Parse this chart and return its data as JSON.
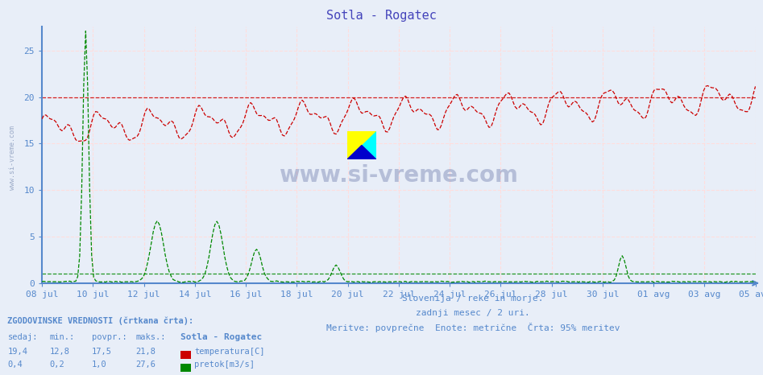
{
  "title": "Sotla - Rogatec",
  "title_color": "#4444bb",
  "bg_color": "#e8eef8",
  "plot_bg_color": "#e8eef8",
  "subtitle1": "Slovenija / reke in morje.",
  "subtitle2": "zadnji mesec / 2 uri.",
  "subtitle3": "Meritve: povprečne  Enote: metrične  Črta: 95% meritev",
  "xlabel_dates": [
    "08 jul",
    "10 jul",
    "12 jul",
    "14 jul",
    "16 jul",
    "18 jul",
    "20 jul",
    "22 jul",
    "24 jul",
    "26 jul",
    "28 jul",
    "30 jul",
    "01 avg",
    "03 avg",
    "05 avg"
  ],
  "ylabel_vals": [
    0,
    5,
    10,
    15,
    20,
    25
  ],
  "temp_color": "#cc0000",
  "flow_color": "#008800",
  "dashed_temp_ref": 20.0,
  "dashed_flow_ref": 1.0,
  "temp_min": 12.8,
  "temp_max": 21.8,
  "temp_avg": 17.5,
  "temp_now": 19.4,
  "flow_min": 0.2,
  "flow_max": 27.6,
  "flow_avg": 1.0,
  "flow_now": 0.4,
  "axis_color": "#5588cc",
  "grid_color": "#ddaaaa",
  "grid_color2": "#ffdddd",
  "watermark": "www.si-vreme.com",
  "watermark_color": "#334488",
  "n_points": 360,
  "ymax": 27.6,
  "legend_label1": "temperatura[C]",
  "legend_label2": "pretok[m3/s]",
  "bottom_label": "ZGODOVINSKE VREDNOSTI (črtkana črta):",
  "col_headers": [
    "sedaj:",
    "min.:",
    "povpr.:",
    "maks.:"
  ],
  "col_values_temp": [
    "19,4",
    "12,8",
    "17,5",
    "21,8"
  ],
  "col_values_flow": [
    "0,4",
    "0,2",
    "1,0",
    "27,6"
  ],
  "station_label": "Sotla - Rogatec",
  "left_watermark": "www.si-vreme.com"
}
